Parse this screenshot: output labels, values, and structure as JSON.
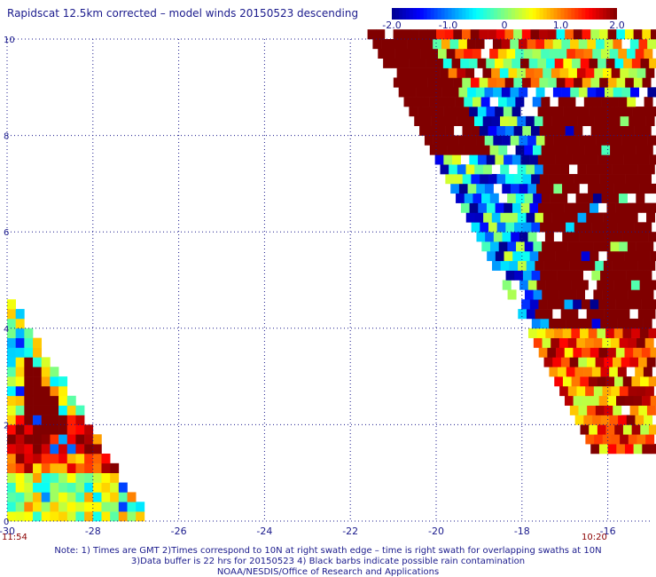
{
  "title": "Rapidscat 12.5km corrected – model winds 20150523 descending",
  "colorbar": {
    "min": -2.0,
    "max": 2.0,
    "tick_labels": [
      "-2.0",
      "-1.0",
      "0",
      "1.0",
      "2.0"
    ],
    "tick_values": [
      -2.0,
      -1.0,
      0,
      1.0,
      2.0
    ],
    "colormap": [
      "#00008f",
      "#0000ff",
      "#0080ff",
      "#00ffff",
      "#80ff80",
      "#ffff00",
      "#ff8000",
      "#ff0000",
      "#800000"
    ]
  },
  "time_labels": {
    "left": "11:54",
    "right": "10:20"
  },
  "notes": [
    "Note: 1) Times are GMT 2)Times correspond to 10N at right swath edge – time is right swath for overlapping swaths at 10N",
    "3)Data buffer is 22 hrs for 20150523 4) Black barbs indicate possible rain contamination",
    "NOAA/NESDIS/Office of Research and Applications"
  ],
  "chart_data": {
    "type": "heatmap",
    "xlim": [
      -30,
      -15
    ],
    "ylim": [
      0,
      10
    ],
    "xticks": [
      -30,
      -28,
      -26,
      -24,
      -22,
      -20,
      -18,
      -16
    ],
    "xtick_labels": [
      "-30",
      "-28",
      "-26",
      "-24",
      "-22",
      "-20",
      "-18",
      "-16"
    ],
    "yticks": [
      0,
      2,
      4,
      6,
      8,
      10
    ],
    "ytick_labels": [
      "0",
      "2",
      "4",
      "6",
      "8",
      "10"
    ],
    "grid": true,
    "cell_size_deg": 0.2,
    "swaths": [
      {
        "name": "left swath",
        "lon_range": [
          -30,
          -26.8
        ],
        "lat_range": [
          0,
          4.6
        ],
        "description_values": "mostly strongly positive (>2.0) in upper part, mixed 0 to 1.5 near bottom"
      },
      {
        "name": "right swath",
        "lon_range": [
          -21.6,
          -15
        ],
        "lat_range": [
          1.4,
          10
        ],
        "description_values": "strongly positive (>2.0) block east of -17.5, mixed -2.0 to 2.0 elsewhere"
      }
    ]
  }
}
